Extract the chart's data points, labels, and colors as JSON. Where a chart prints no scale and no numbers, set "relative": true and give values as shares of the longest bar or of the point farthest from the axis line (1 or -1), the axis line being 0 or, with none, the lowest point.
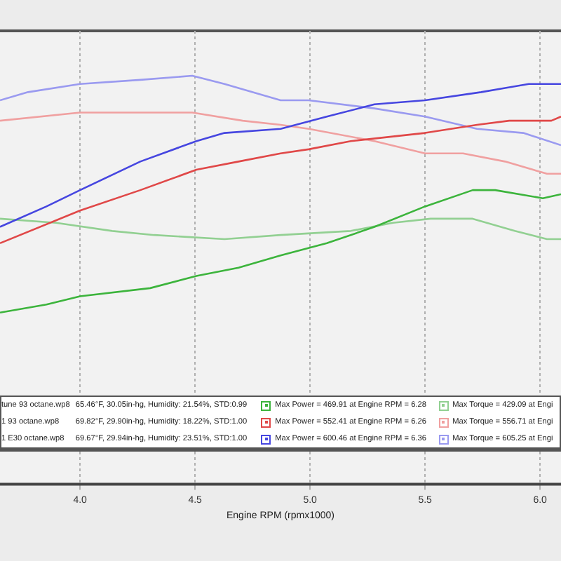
{
  "chart_data": {
    "type": "line",
    "relative": true,
    "xlabel": "Engine RPM (rpmx1000)",
    "xlim": [
      3.652,
      6.091
    ],
    "xticks": [
      {
        "value": 4,
        "label": "4.0"
      },
      {
        "value": 4.5,
        "label": "4.5"
      },
      {
        "value": 5,
        "label": "5.0"
      },
      {
        "value": 5.5,
        "label": "5.5"
      },
      {
        "value": 6,
        "label": "6.0"
      }
    ],
    "grid": "x",
    "legend": false,
    "marker": "none",
    "line_style": "solid",
    "series": [
      {
        "color": "#3cb43c",
        "x": [
          3.652,
          3.854,
          4.0,
          4.305,
          4.506,
          4.689,
          4.872,
          5.073,
          5.28,
          5.5,
          5.707,
          5.805,
          6.012,
          6.091
        ],
        "values": [
          0.42,
          0.44,
          0.46,
          0.48,
          0.51,
          0.53,
          0.56,
          0.59,
          0.63,
          0.68,
          0.72,
          0.72,
          0.7,
          0.71
        ]
      },
      {
        "color": "#e04848",
        "x": [
          3.652,
          4.0,
          4.262,
          4.506,
          4.689,
          4.872,
          4.994,
          5.177,
          5.5,
          5.726,
          5.866,
          6.049,
          6.091
        ],
        "values": [
          0.59,
          0.67,
          0.72,
          0.77,
          0.79,
          0.81,
          0.82,
          0.84,
          0.86,
          0.88,
          0.89,
          0.89,
          0.9
        ]
      },
      {
        "color": "#4646e0",
        "x": [
          3.652,
          3.854,
          4.0,
          4.262,
          4.506,
          4.628,
          4.872,
          5.073,
          5.28,
          5.5,
          5.744,
          5.848,
          5.951,
          6.091
        ],
        "values": [
          0.63,
          0.68,
          0.72,
          0.79,
          0.84,
          0.86,
          0.87,
          0.9,
          0.93,
          0.94,
          0.96,
          0.97,
          0.98,
          0.98
        ]
      },
      {
        "color": "#92d092",
        "x": [
          3.652,
          3.896,
          4.14,
          4.323,
          4.628,
          4.872,
          5.177,
          5.36,
          5.524,
          5.707,
          5.89,
          6.03,
          6.091
        ],
        "values": [
          0.65,
          0.64,
          0.62,
          0.61,
          0.6,
          0.61,
          0.62,
          0.64,
          0.65,
          0.65,
          0.62,
          0.6,
          0.6
        ]
      },
      {
        "color": "#f0a0a0",
        "x": [
          3.652,
          4.0,
          4.262,
          4.488,
          4.707,
          4.872,
          4.994,
          5.28,
          5.5,
          5.665,
          5.848,
          6.03,
          6.091
        ],
        "values": [
          0.89,
          0.91,
          0.91,
          0.91,
          0.89,
          0.88,
          0.87,
          0.84,
          0.81,
          0.81,
          0.79,
          0.76,
          0.76
        ]
      },
      {
        "color": "#9a9af0",
        "x": [
          3.652,
          3.774,
          4.0,
          4.262,
          4.488,
          4.628,
          4.872,
          4.994,
          5.28,
          5.5,
          5.726,
          5.927,
          6.091
        ],
        "values": [
          0.94,
          0.96,
          0.98,
          0.99,
          1.0,
          0.98,
          0.94,
          0.94,
          0.92,
          0.9,
          0.87,
          0.86,
          0.83
        ]
      }
    ],
    "annotations": [
      "tune 93 octane.wp8",
      "65.46°F, 30.05in-hg, Humidity: 21.54%, STD:0.99",
      "Max Power = 469.91 at Engine RPM = 6.28",
      "Max Torque = 429.09 at Engi",
      "1 93 octane.wp8",
      "69.82°F, 29.90in-hg, Humidity: 18.22%, STD:1.00",
      "Max Power = 552.41 at Engine RPM = 6.26",
      "Max Torque = 556.71 at Engi",
      "1 E30 octane.wp8",
      "69.67°F, 29.94in-hg, Humidity: 23.51%, STD:1.00",
      "Max Power = 600.46 at Engine RPM = 6.36",
      "Max Torque = 605.25 at Engi"
    ]
  }
}
